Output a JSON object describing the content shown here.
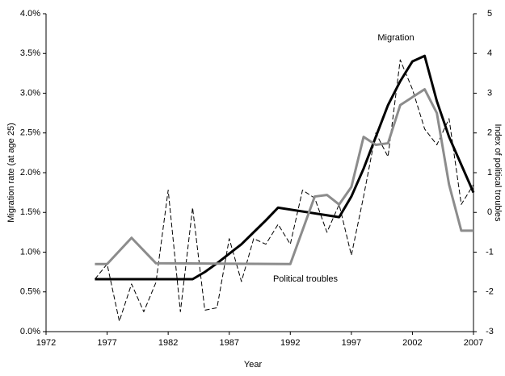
{
  "chart_data": {
    "type": "line",
    "xlabel": "Year",
    "ylabel": "Migration rate (at age 25)",
    "y2label": "Index of political troubles",
    "xlim": [
      1972,
      2007
    ],
    "xticks": [
      1972,
      1977,
      1982,
      1987,
      1992,
      1997,
      2002,
      2007
    ],
    "ylim": [
      0,
      4
    ],
    "yticks": [
      {
        "value": 0,
        "label": "0.0%"
      },
      {
        "value": 0.5,
        "label": "0.5%"
      },
      {
        "value": 1,
        "label": "1.0%"
      },
      {
        "value": 1.5,
        "label": "1.5%"
      },
      {
        "value": 2,
        "label": "2.0%"
      },
      {
        "value": 2.5,
        "label": "2.5%"
      },
      {
        "value": 3,
        "label": "3.0%"
      },
      {
        "value": 3.5,
        "label": "3.5%"
      },
      {
        "value": 4,
        "label": "4.0%"
      }
    ],
    "y2lim": [
      -3,
      5
    ],
    "y2ticks": [
      -3,
      -2,
      -1,
      0,
      1,
      2,
      3,
      4,
      5
    ],
    "grid": false,
    "series": [
      {
        "color": "#000000",
        "dash": true,
        "width": 1,
        "x": [
          1976,
          1977,
          1978,
          1979,
          1980,
          1981,
          1982,
          1983,
          1984,
          1985,
          1986,
          1987,
          1988,
          1989,
          1990,
          1991,
          1992,
          1993,
          1994,
          1995,
          1996,
          1997,
          1998,
          1999,
          2000,
          2001,
          2002,
          2003,
          2004,
          2005,
          2006,
          2007
        ],
        "values": [
          0.66,
          0.85,
          0.13,
          0.6,
          0.25,
          0.62,
          1.78,
          0.25,
          1.56,
          0.27,
          0.3,
          1.17,
          0.63,
          1.17,
          1.1,
          1.35,
          1.1,
          1.78,
          1.68,
          1.25,
          1.6,
          0.96,
          1.7,
          2.5,
          2.2,
          3.42,
          3.05,
          2.55,
          2.35,
          2.68,
          1.6,
          1.85
        ]
      },
      {
        "name": "Migration",
        "color": "#000000",
        "dash": false,
        "width": 3,
        "x": [
          1976,
          1984,
          1985,
          1986,
          1987,
          1988,
          1989,
          1990,
          1991,
          1996,
          1997,
          1998,
          1999,
          2000,
          2001,
          2002,
          2003,
          2004,
          2005,
          2006,
          2007
        ],
        "values": [
          0.66,
          0.66,
          0.75,
          0.86,
          0.98,
          1.1,
          1.25,
          1.4,
          1.56,
          1.44,
          1.7,
          2.05,
          2.45,
          2.85,
          3.15,
          3.4,
          3.47,
          2.9,
          2.45,
          2.1,
          1.75
        ]
      },
      {
        "name": "Political troubles",
        "color": "#8c8c8c",
        "dash": false,
        "width": 3,
        "axis": "y2",
        "x": [
          1976,
          1977,
          1979,
          1981,
          1992,
          1994,
          1995,
          1996,
          1997,
          1998,
          1999,
          2000,
          2001,
          2002,
          2003,
          2004,
          2005,
          2006,
          2007
        ],
        "values": [
          -1.3,
          -1.3,
          -0.64,
          -1.28,
          -1.3,
          0.4,
          0.44,
          0.2,
          0.64,
          1.9,
          1.7,
          1.74,
          2.7,
          2.9,
          3.1,
          2.5,
          0.7,
          -0.46,
          -0.46
        ]
      }
    ]
  }
}
